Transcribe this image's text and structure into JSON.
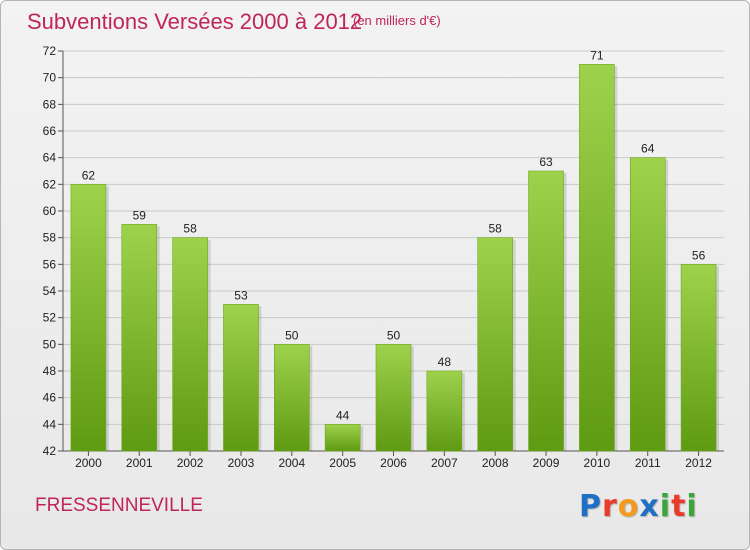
{
  "header": {
    "title": "Subventions Versées 2000 à 2012",
    "subtitle": "(en milliers d'€)"
  },
  "footer": {
    "commune": "FRESSENNEVILLE",
    "brand": "Proxiti",
    "brand_letter_colors": [
      "#1f6fc5",
      "#e83b2b",
      "#f39a1c",
      "#1f6fc5",
      "#3aa53a",
      "#e83b2b",
      "#3aa53a"
    ]
  },
  "colors": {
    "title": "#c0245c",
    "bar_light": "#9fd24c",
    "bar_dark": "#5e9a12",
    "gridline": "#c9c9c9"
  },
  "chart_data": {
    "type": "bar",
    "categories": [
      "2000",
      "2001",
      "2002",
      "2003",
      "2004",
      "2005",
      "2006",
      "2007",
      "2008",
      "2009",
      "2010",
      "2011",
      "2012"
    ],
    "values": [
      62,
      59,
      58,
      53,
      50,
      44,
      50,
      48,
      58,
      63,
      71,
      64,
      56
    ],
    "title": "Subventions Versées 2000 à 2012",
    "subtitle": "(en milliers d'€)",
    "xlabel": "",
    "ylabel": "",
    "ylim": [
      42,
      72
    ],
    "yticks": [
      42,
      44,
      46,
      48,
      50,
      52,
      54,
      56,
      58,
      60,
      62,
      64,
      66,
      68,
      70,
      72
    ],
    "grid": true,
    "data_labels": true
  }
}
